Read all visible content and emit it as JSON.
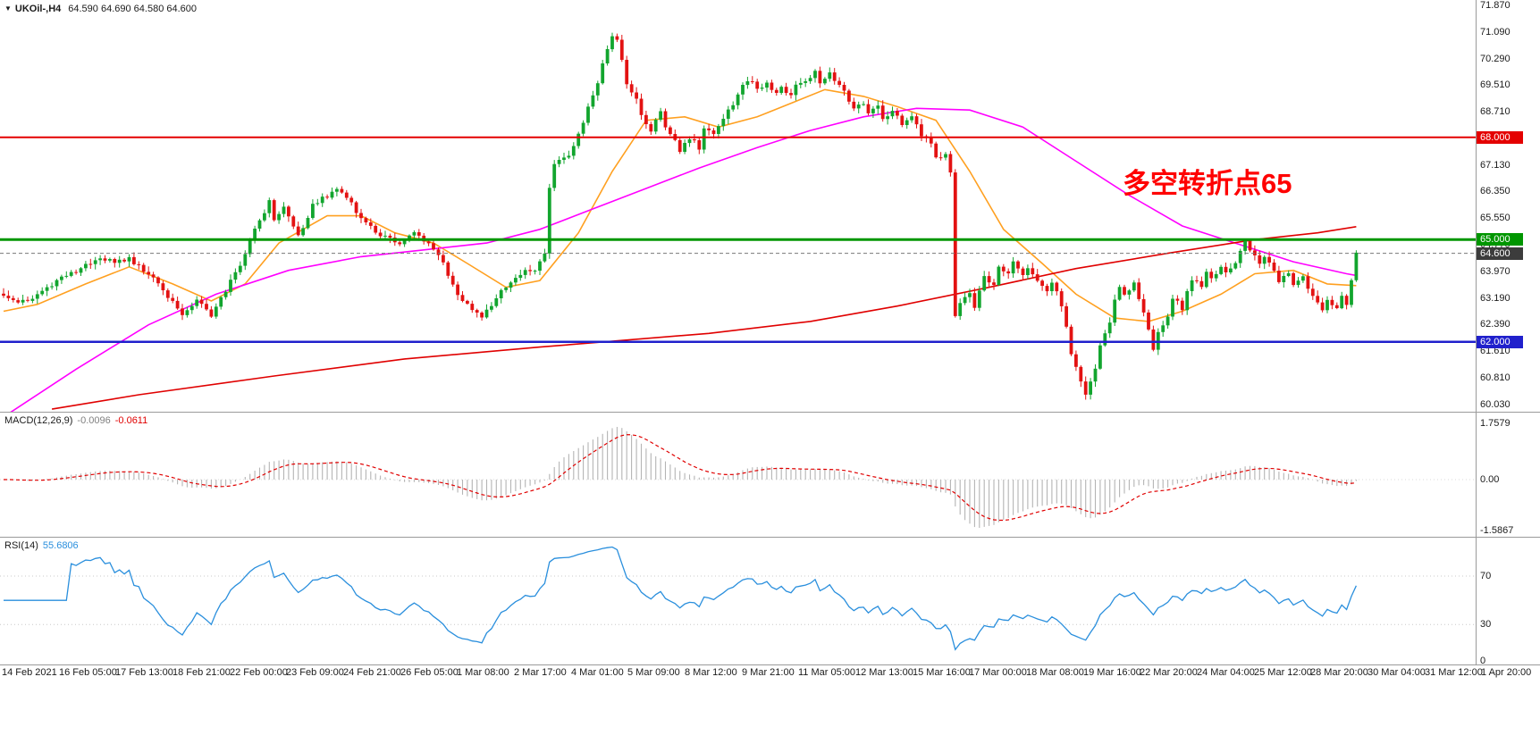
{
  "header": {
    "dropdown_icon": "▼",
    "symbol_timeframe": "UKOil-,H4",
    "ohlc": "64.590 64.690 64.580 64.600"
  },
  "annotation": {
    "text": "多空转折点65",
    "color": "#ff0000"
  },
  "macd": {
    "label": "MACD(12,26,9)",
    "value_main": "-0.0096",
    "value_signal": "-0.0611"
  },
  "rsi": {
    "label": "RSI(14)",
    "value": "55.6806"
  },
  "chart_data": {
    "type": "candlestick",
    "symbol": "UKOil-",
    "timeframe": "H4",
    "title": "UKOil-,H4",
    "current": {
      "open": 64.59,
      "high": 64.69,
      "low": 64.58,
      "close": 64.6
    },
    "bars": 281,
    "y_axis": {
      "max": 71.87,
      "min": 60.03,
      "tick_step": 0.78,
      "ticks": [
        "71.870",
        "71.090",
        "70.290",
        "69.510",
        "68.710",
        "67.930",
        "67.130",
        "66.350",
        "65.550",
        "64.770",
        "63.970",
        "63.190",
        "62.390",
        "61.610",
        "60.810",
        "60.030"
      ]
    },
    "hlines": [
      {
        "price": 68.0,
        "label": "68.000",
        "color": "#e40000",
        "width": 2
      },
      {
        "price": 65.0,
        "label": "65.000",
        "color": "#009600",
        "width": 3
      },
      {
        "price": 62.0,
        "label": "62.000",
        "color": "#2020cc",
        "width": 2.5
      }
    ],
    "current_price": {
      "price": 64.6,
      "label": "64.600",
      "color": "#777777",
      "badge": "#3c3c3c"
    },
    "colors": {
      "bull": "#12a52e",
      "bear": "#e31212",
      "ma_fast": "#ffa020",
      "ma_mid": "#ff00ff",
      "ma_slow": "#e00000",
      "macd_hist": "#b4b4b4",
      "macd_signal": "#e00000",
      "rsi_line": "#2a8fdd"
    },
    "close_waypoints": [
      [
        0,
        63.4
      ],
      [
        3,
        63.15
      ],
      [
        6,
        63.3
      ],
      [
        9,
        63.6
      ],
      [
        12,
        63.9
      ],
      [
        15,
        64.05
      ],
      [
        18,
        64.35
      ],
      [
        20,
        64.5
      ],
      [
        23,
        64.3
      ],
      [
        26,
        64.45
      ],
      [
        28,
        64.2
      ],
      [
        31,
        63.9
      ],
      [
        34,
        63.3
      ],
      [
        37,
        62.85
      ],
      [
        40,
        63.2
      ],
      [
        43,
        62.8
      ],
      [
        46,
        63.5
      ],
      [
        49,
        64.3
      ],
      [
        52,
        65.3
      ],
      [
        55,
        66.1
      ],
      [
        56,
        65.6
      ],
      [
        58,
        65.95
      ],
      [
        61,
        65.1
      ],
      [
        64,
        66.0
      ],
      [
        67,
        66.3
      ],
      [
        69,
        66.5
      ],
      [
        72,
        66.1
      ],
      [
        74,
        65.6
      ],
      [
        77,
        65.25
      ],
      [
        80,
        65.0
      ],
      [
        82,
        64.85
      ],
      [
        85,
        65.2
      ],
      [
        88,
        64.9
      ],
      [
        91,
        64.3
      ],
      [
        94,
        63.4
      ],
      [
        96,
        63.1
      ],
      [
        99,
        62.75
      ],
      [
        102,
        63.3
      ],
      [
        105,
        63.8
      ],
      [
        107,
        64.0
      ],
      [
        110,
        64.15
      ],
      [
        112,
        64.6
      ],
      [
        113,
        66.5
      ],
      [
        114,
        67.2
      ],
      [
        116,
        67.35
      ],
      [
        118,
        67.7
      ],
      [
        120,
        68.4
      ],
      [
        122,
        69.3
      ],
      [
        123,
        69.6
      ],
      [
        124,
        70.2
      ],
      [
        126,
        71.0
      ],
      [
        127,
        70.85
      ],
      [
        128,
        70.3
      ],
      [
        129,
        69.6
      ],
      [
        131,
        69.15
      ],
      [
        132,
        68.6
      ],
      [
        134,
        68.2
      ],
      [
        136,
        68.7
      ],
      [
        137,
        68.3
      ],
      [
        139,
        67.9
      ],
      [
        140,
        67.55
      ],
      [
        142,
        68.0
      ],
      [
        144,
        67.7
      ],
      [
        145,
        68.3
      ],
      [
        147,
        68.1
      ],
      [
        149,
        68.6
      ],
      [
        151,
        69.0
      ],
      [
        153,
        69.5
      ],
      [
        155,
        69.7
      ],
      [
        156,
        69.4
      ],
      [
        158,
        69.6
      ],
      [
        160,
        69.3
      ],
      [
        161,
        69.5
      ],
      [
        163,
        69.2
      ],
      [
        164,
        69.5
      ],
      [
        166,
        69.7
      ],
      [
        168,
        69.9
      ],
      [
        169,
        69.65
      ],
      [
        171,
        69.85
      ],
      [
        173,
        69.55
      ],
      [
        175,
        69.1
      ],
      [
        176,
        68.8
      ],
      [
        178,
        69.0
      ],
      [
        179,
        68.7
      ],
      [
        181,
        68.9
      ],
      [
        182,
        68.5
      ],
      [
        184,
        68.8
      ],
      [
        186,
        68.4
      ],
      [
        188,
        68.6
      ],
      [
        190,
        68.1
      ],
      [
        192,
        67.8
      ],
      [
        193,
        67.35
      ],
      [
        195,
        67.55
      ],
      [
        196,
        67.0
      ],
      [
        197,
        62.8
      ],
      [
        198,
        63.15
      ],
      [
        200,
        63.45
      ],
      [
        201,
        63.0
      ],
      [
        203,
        63.9
      ],
      [
        205,
        63.7
      ],
      [
        206,
        64.15
      ],
      [
        208,
        63.95
      ],
      [
        209,
        64.3
      ],
      [
        211,
        63.9
      ],
      [
        212,
        64.1
      ],
      [
        214,
        63.8
      ],
      [
        216,
        63.5
      ],
      [
        217,
        63.75
      ],
      [
        219,
        63.1
      ],
      [
        220,
        62.4
      ],
      [
        221,
        61.6
      ],
      [
        223,
        60.8
      ],
      [
        224,
        60.5
      ],
      [
        226,
        61.2
      ],
      [
        227,
        61.9
      ],
      [
        229,
        62.6
      ],
      [
        230,
        63.2
      ],
      [
        231,
        63.6
      ],
      [
        232,
        63.4
      ],
      [
        234,
        63.7
      ],
      [
        235,
        63.25
      ],
      [
        237,
        62.4
      ],
      [
        238,
        61.8
      ],
      [
        239,
        62.3
      ],
      [
        241,
        62.8
      ],
      [
        242,
        63.3
      ],
      [
        244,
        63.0
      ],
      [
        245,
        63.5
      ],
      [
        246,
        63.85
      ],
      [
        248,
        63.65
      ],
      [
        249,
        64.1
      ],
      [
        250,
        63.9
      ],
      [
        252,
        64.2
      ],
      [
        253,
        64.0
      ],
      [
        255,
        64.3
      ],
      [
        256,
        64.6
      ],
      [
        257,
        64.95
      ],
      [
        259,
        64.55
      ],
      [
        260,
        64.25
      ],
      [
        261,
        64.5
      ],
      [
        263,
        64.1
      ],
      [
        264,
        63.8
      ],
      [
        266,
        64.0
      ],
      [
        267,
        63.7
      ],
      [
        269,
        63.9
      ],
      [
        270,
        63.55
      ],
      [
        271,
        63.3
      ],
      [
        273,
        62.9
      ],
      [
        274,
        63.2
      ],
      [
        276,
        62.95
      ],
      [
        277,
        63.4
      ],
      [
        278,
        63.15
      ],
      [
        279,
        63.8
      ],
      [
        280,
        64.6
      ]
    ],
    "ma_lines": [
      {
        "name": "ma-fast-orange",
        "color": "#ffa020",
        "points": [
          [
            0,
            62.9
          ],
          [
            7,
            63.1
          ],
          [
            17,
            63.7
          ],
          [
            26,
            64.2
          ],
          [
            35,
            63.7
          ],
          [
            43,
            63.2
          ],
          [
            50,
            63.7
          ],
          [
            57,
            64.9
          ],
          [
            67,
            65.7
          ],
          [
            74,
            65.7
          ],
          [
            81,
            65.2
          ],
          [
            89,
            64.9
          ],
          [
            96,
            64.3
          ],
          [
            104,
            63.6
          ],
          [
            111,
            63.8
          ],
          [
            119,
            65.2
          ],
          [
            126,
            67.0
          ],
          [
            133,
            68.5
          ],
          [
            141,
            68.6
          ],
          [
            148,
            68.3
          ],
          [
            156,
            68.6
          ],
          [
            163,
            69.0
          ],
          [
            170,
            69.4
          ],
          [
            178,
            69.2
          ],
          [
            185,
            68.9
          ],
          [
            193,
            68.5
          ],
          [
            200,
            67.0
          ],
          [
            207,
            65.3
          ],
          [
            215,
            64.3
          ],
          [
            222,
            63.4
          ],
          [
            230,
            62.7
          ],
          [
            237,
            62.6
          ],
          [
            244,
            62.9
          ],
          [
            252,
            63.4
          ],
          [
            259,
            64.0
          ],
          [
            267,
            64.1
          ],
          [
            274,
            63.7
          ],
          [
            280,
            63.65
          ]
        ]
      },
      {
        "name": "ma-mid-magenta",
        "color": "#ff00ff",
        "points": [
          [
            0,
            59.8
          ],
          [
            15,
            61.2
          ],
          [
            30,
            62.5
          ],
          [
            44,
            63.4
          ],
          [
            59,
            64.1
          ],
          [
            74,
            64.5
          ],
          [
            87,
            64.7
          ],
          [
            100,
            64.9
          ],
          [
            111,
            65.3
          ],
          [
            122,
            65.9
          ],
          [
            133,
            66.5
          ],
          [
            144,
            67.1
          ],
          [
            156,
            67.7
          ],
          [
            167,
            68.2
          ],
          [
            178,
            68.6
          ],
          [
            189,
            68.85
          ],
          [
            200,
            68.8
          ],
          [
            211,
            68.3
          ],
          [
            222,
            67.3
          ],
          [
            233,
            66.3
          ],
          [
            244,
            65.4
          ],
          [
            256,
            64.85
          ],
          [
            267,
            64.35
          ],
          [
            278,
            64.0
          ],
          [
            280,
            63.95
          ]
        ]
      },
      {
        "name": "ma-slow-red",
        "color": "#e00000",
        "points": [
          [
            10,
            60.03
          ],
          [
            28,
            60.45
          ],
          [
            56,
            61.0
          ],
          [
            83,
            61.5
          ],
          [
            111,
            61.85
          ],
          [
            146,
            62.25
          ],
          [
            167,
            62.6
          ],
          [
            185,
            63.05
          ],
          [
            204,
            63.6
          ],
          [
            222,
            64.15
          ],
          [
            241,
            64.6
          ],
          [
            259,
            65.0
          ],
          [
            272,
            65.2
          ],
          [
            280,
            65.38
          ]
        ]
      }
    ],
    "macd": {
      "fast": 12,
      "slow": 26,
      "signal": 9,
      "y_ticks": [
        {
          "v": 1.7579,
          "label": "1.7579"
        },
        {
          "v": 0,
          "label": "0.00"
        },
        {
          "v": -1.5867,
          "label": "-1.5867"
        }
      ]
    },
    "rsi": {
      "period": 14,
      "levels": [
        70,
        30
      ],
      "y_ticks": [
        {
          "v": 70,
          "label": "70"
        },
        {
          "v": 30,
          "label": "30"
        },
        {
          "v": 0,
          "label": "0"
        }
      ]
    },
    "x_labels": [
      "14 Feb 2021",
      "16 Feb 05:00",
      "17 Feb 13:00",
      "18 Feb 21:00",
      "22 Feb 00:00",
      "23 Feb 09:00",
      "24 Feb 21:00",
      "26 Feb 05:00",
      "1 Mar 08:00",
      "2 Mar 17:00",
      "4 Mar 01:00",
      "5 Mar 09:00",
      "8 Mar 12:00",
      "9 Mar 21:00",
      "11 Mar 05:00",
      "12 Mar 13:00",
      "15 Mar 16:00",
      "17 Mar 00:00",
      "18 Mar 08:00",
      "19 Mar 16:00",
      "22 Mar 20:00",
      "24 Mar 04:00",
      "25 Mar 12:00",
      "28 Mar 20:00",
      "30 Mar 04:00",
      "31 Mar 12:00",
      "1 Apr 20:00"
    ]
  }
}
